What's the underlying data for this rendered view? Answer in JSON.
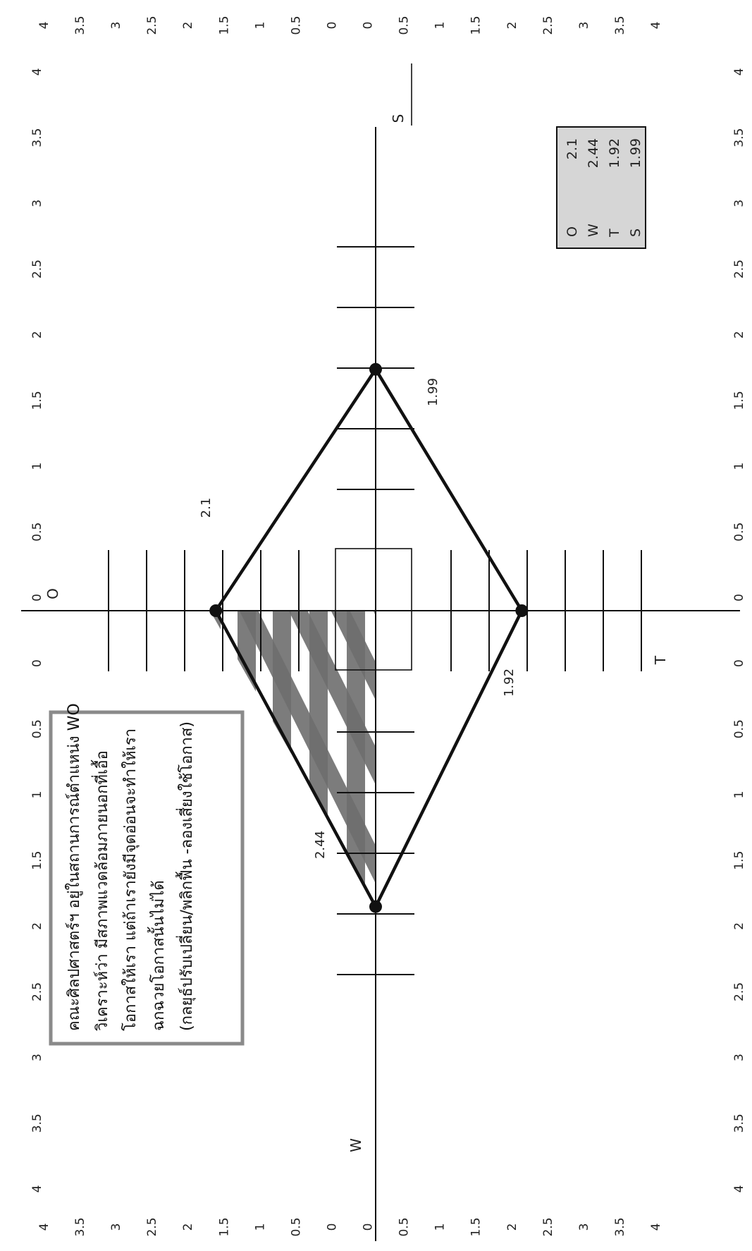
{
  "chart_data": {
    "type": "swot-quadrant",
    "orientation": "rotated-90",
    "axes": {
      "vertical_axis": {
        "top_label": "O",
        "bottom_label": "T"
      },
      "horizontal_axis": {
        "left_label": "W",
        "right_label": "S"
      }
    },
    "tick_labels": [
      "4",
      "3.5",
      "3",
      "2.5",
      "2",
      "1.5",
      "1",
      "0.5",
      "0",
      "0",
      "0.5",
      "1",
      "1.5",
      "2",
      "2.5",
      "3",
      "3.5",
      "4"
    ],
    "values": [
      {
        "name": "O",
        "value": 2.1
      },
      {
        "name": "W",
        "value": 2.44
      },
      {
        "name": "T",
        "value": 1.92
      },
      {
        "name": "S",
        "value": 1.99
      }
    ],
    "value_labels": {
      "O": "2.1",
      "W": "2.44",
      "T": "1.92",
      "S": "1.99"
    },
    "legend": {
      "position": "top-right",
      "rows": [
        {
          "key": "O",
          "value": "2.1"
        },
        {
          "key": "W",
          "value": "2.44"
        },
        {
          "key": "T",
          "value": "1.92"
        },
        {
          "key": "S",
          "value": "1.99"
        }
      ]
    },
    "highlighted_quadrant": "WO",
    "note_lines": [
      "คณะศิลปศาสตร์ฯ อยู่ในสถานการณ์ตำแหน่ง WO",
      "วิเคราะห์ว่า มีสภาพแวดล้อมภายนอกที่เอื้อ",
      "โอกาสให้เรา  แต่ถ้าเรายังมีจุดอ่อนจะทำให้เรา",
      "ฉกฉวยโอกาสนั้นไม่ได้",
      "(กลยุธ์ปรับเปลี่ยน/พลิกฟื้น -ลองเสี่ยงใช้โอกาส)"
    ],
    "colors": {
      "line": "#111111",
      "hatch": "#6e6e6e",
      "legend_bg": "#d6d6d6",
      "note_border": "#8a8a8a"
    }
  }
}
